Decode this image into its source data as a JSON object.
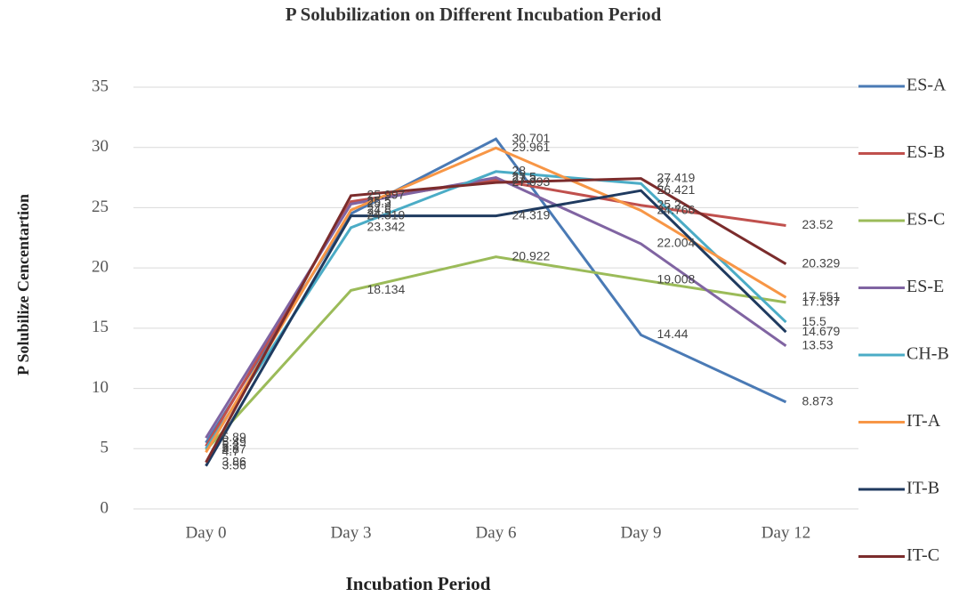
{
  "chart_data": {
    "type": "line",
    "title": "P Solubilization on Different Incubation Period",
    "x_label": "Incubation Period",
    "y_label": "P Solubilize Cencentartion",
    "categories": [
      "Day 0",
      "Day 3",
      "Day 6",
      "Day 9",
      "Day 12"
    ],
    "series": [
      {
        "name": "ES-A",
        "color": "#4a7ab5",
        "values": [
          5.49,
          24.5,
          30.701,
          14.44,
          8.873
        ]
      },
      {
        "name": "ES-B",
        "color": "#c0504d",
        "values": [
          5.2,
          25.5,
          27.3,
          25.2,
          23.52
        ]
      },
      {
        "name": "ES-C",
        "color": "#9bbb59",
        "values": [
          4.87,
          18.134,
          20.922,
          19.008,
          17.137
        ]
      },
      {
        "name": "ES-E",
        "color": "#8064a2",
        "values": [
          5.89,
          25.3,
          27.5,
          22.004,
          13.53
        ]
      },
      {
        "name": "CH-B",
        "color": "#4bacc6",
        "values": [
          5.0,
          23.342,
          28.0,
          27.0,
          15.5
        ]
      },
      {
        "name": "IT-A",
        "color": "#f79646",
        "values": [
          4.7,
          24.8,
          29.961,
          24.766,
          17.551
        ]
      },
      {
        "name": "IT-B",
        "color": "#1f3a5f",
        "values": [
          3.56,
          24.319,
          24.319,
          26.421,
          14.679
        ]
      },
      {
        "name": "IT-C",
        "color": "#7b2c2c",
        "values": [
          3.86,
          25.997,
          27.093,
          27.419,
          20.329
        ]
      }
    ],
    "ylim": [
      0,
      35
    ],
    "yticks": [
      0,
      5,
      10,
      15,
      20,
      25,
      30,
      35
    ],
    "grid": true,
    "legend": "right"
  }
}
